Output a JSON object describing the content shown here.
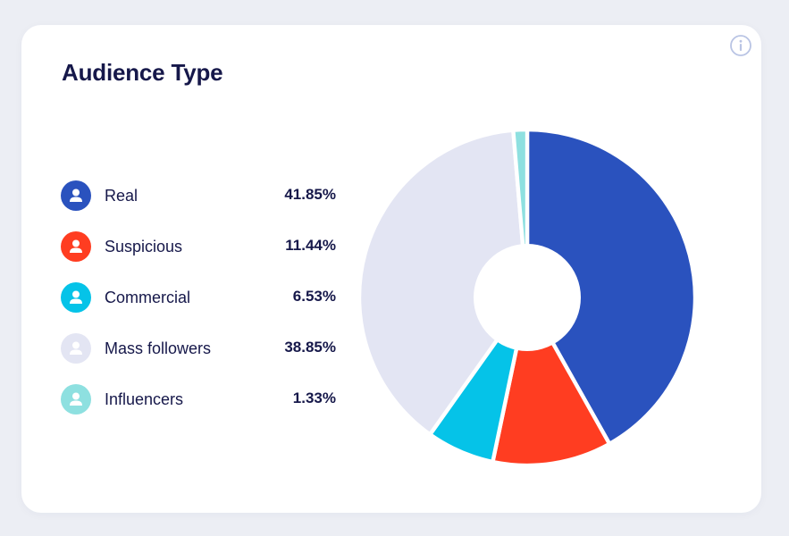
{
  "card": {
    "title": "Audience Type"
  },
  "icons": {
    "info": "info-circle-icon",
    "legend_marker": "user-icon"
  },
  "colors": {
    "real": "#2a52be",
    "suspicious": "#ff3d21",
    "commercial": "#05c3e8",
    "mass_followers": "#e3e5f3",
    "influencers": "#8ee0e0",
    "text": "#16184a"
  },
  "legend": [
    {
      "label": "Real",
      "value": "41.85%",
      "color": "#2a52be"
    },
    {
      "label": "Suspicious",
      "value": "11.44%",
      "color": "#ff3d21"
    },
    {
      "label": "Commercial",
      "value": "6.53%",
      "color": "#05c3e8"
    },
    {
      "label": "Mass followers",
      "value": "38.85%",
      "color": "#e3e5f3"
    },
    {
      "label": "Influencers",
      "value": "1.33%",
      "color": "#8ee0e0"
    }
  ],
  "chart_data": {
    "type": "pie",
    "title": "Audience Type",
    "donut": true,
    "categories": [
      "Real",
      "Suspicious",
      "Commercial",
      "Mass followers",
      "Influencers"
    ],
    "values": [
      41.85,
      11.44,
      6.53,
      38.85,
      1.33
    ],
    "unit": "%",
    "colors": [
      "#2a52be",
      "#ff3d21",
      "#05c3e8",
      "#e3e5f3",
      "#8ee0e0"
    ],
    "legend_position": "left"
  }
}
